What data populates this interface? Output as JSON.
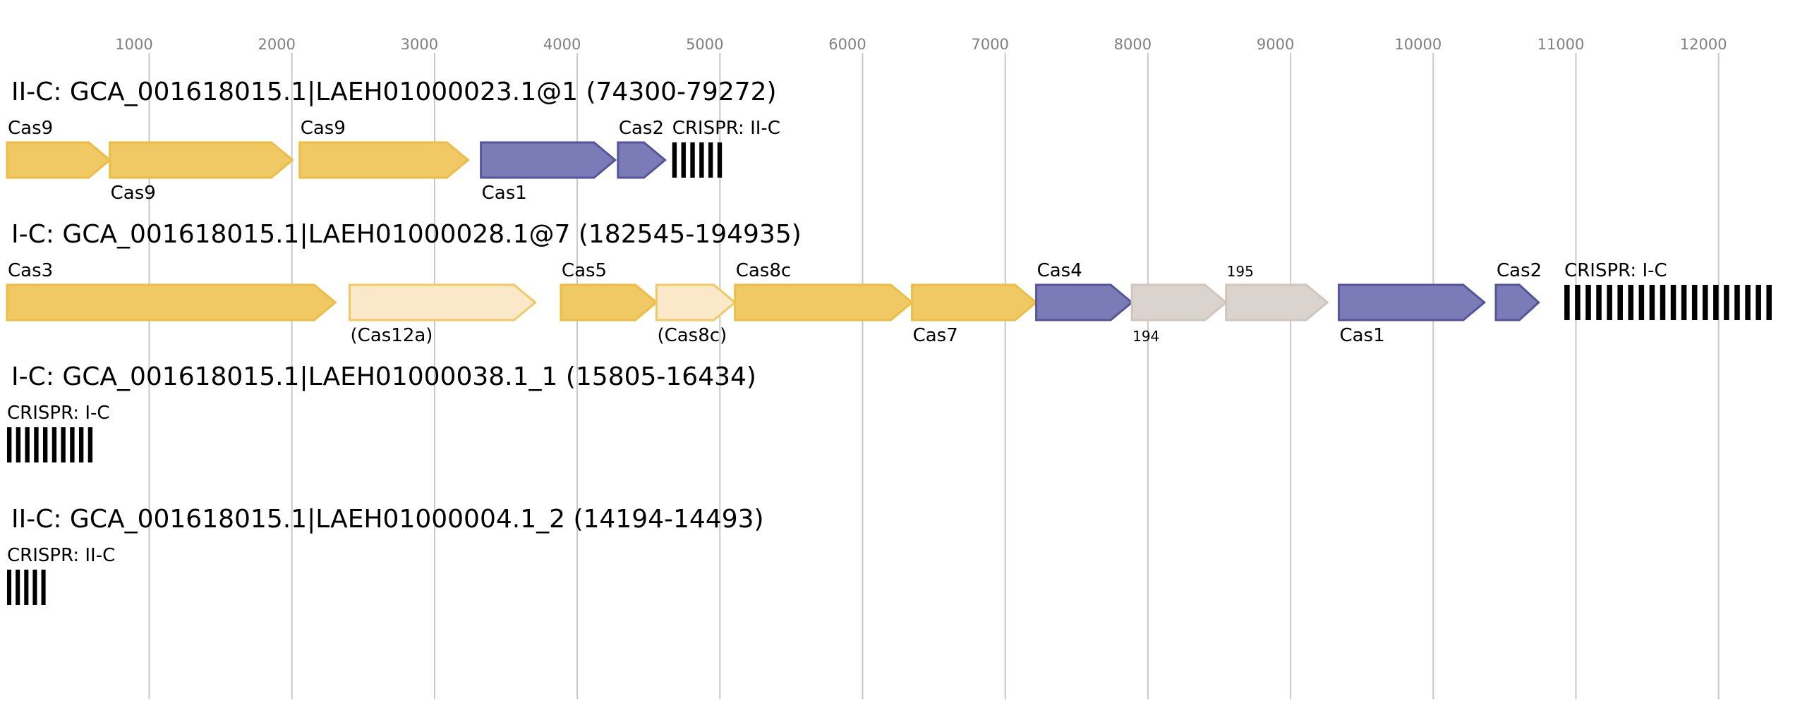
{
  "axis": {
    "ticks": [
      1000,
      2000,
      3000,
      4000,
      5000,
      6000,
      7000,
      8000,
      9000,
      10000,
      11000,
      12000
    ],
    "grid": true
  },
  "colors": {
    "core_fill": "#f0c864",
    "core_stroke": "#ebbe46",
    "partial_fill": "#fae8c8",
    "partial_stroke": "#f0c864",
    "adapt_fill": "#7b7bb7",
    "adapt_stroke": "#55559b",
    "other_fill": "#dbd3cd",
    "other_stroke": "#d0c6be",
    "crispr": "#000000",
    "grid": "#c8c8c8",
    "tick_text": "#808080"
  },
  "loci": [
    {
      "title": "II-C: GCA_001618015.1|LAEH01000023.1@1 (74300-79272)",
      "genes": [
        {
          "label": "Cas9",
          "start": 0,
          "end": 720,
          "kind": "core",
          "pos": "above"
        },
        {
          "label": "Cas9",
          "start": 720,
          "end": 2000,
          "kind": "core",
          "pos": "below"
        },
        {
          "label": "Cas9",
          "start": 2050,
          "end": 3230,
          "kind": "core",
          "pos": "above"
        },
        {
          "label": "Cas1",
          "start": 3320,
          "end": 4260,
          "kind": "adapt",
          "pos": "below"
        },
        {
          "label": "Cas2",
          "start": 4280,
          "end": 4610,
          "kind": "adapt",
          "pos": "above"
        }
      ],
      "crisprs": [
        {
          "label": "CRISPR: II-C",
          "start": 4660,
          "end": 5040,
          "repeats": 6
        }
      ]
    },
    {
      "title": "I-C: GCA_001618015.1|LAEH01000028.1@7 (182545-194935)",
      "genes": [
        {
          "label": "Cas3",
          "start": 0,
          "end": 2300,
          "kind": "core",
          "pos": "above"
        },
        {
          "label": "(Cas12a)",
          "start": 2400,
          "end": 3700,
          "kind": "partial",
          "pos": "below"
        },
        {
          "label": "Cas5",
          "start": 3880,
          "end": 4550,
          "kind": "core",
          "pos": "above"
        },
        {
          "label": "(Cas8c)",
          "start": 4550,
          "end": 5100,
          "kind": "partial",
          "pos": "below"
        },
        {
          "label": "Cas8c",
          "start": 5100,
          "end": 6340,
          "kind": "core",
          "pos": "above"
        },
        {
          "label": "Cas7",
          "start": 6340,
          "end": 7210,
          "kind": "core",
          "pos": "below"
        },
        {
          "label": "Cas4",
          "start": 7210,
          "end": 7880,
          "kind": "adapt",
          "pos": "above"
        },
        {
          "label": "194",
          "start": 7880,
          "end": 8540,
          "kind": "other",
          "pos": "below",
          "small": true
        },
        {
          "label": "195",
          "start": 8540,
          "end": 9250,
          "kind": "other",
          "pos": "above",
          "small": true
        },
        {
          "label": "Cas1",
          "start": 9330,
          "end": 10350,
          "kind": "adapt",
          "pos": "below"
        },
        {
          "label": "Cas2",
          "start": 10430,
          "end": 10730,
          "kind": "adapt",
          "pos": "above"
        }
      ],
      "crisprs": [
        {
          "label": "CRISPR: I-C",
          "start": 10910,
          "end": 12400,
          "repeats": 20
        }
      ]
    },
    {
      "title": "I-C: GCA_001618015.1|LAEH01000038.1_1 (15805-16434)",
      "genes": [],
      "crisprs": [
        {
          "label": "CRISPR: I-C",
          "start": 0,
          "end": 630,
          "repeats": 10
        }
      ]
    },
    {
      "title": "II-C: GCA_001618015.1|LAEH01000004.1_2 (14194-14493)",
      "genes": [],
      "crisprs": [
        {
          "label": "CRISPR: II-C",
          "start": 0,
          "end": 300,
          "repeats": 5
        }
      ]
    }
  ]
}
